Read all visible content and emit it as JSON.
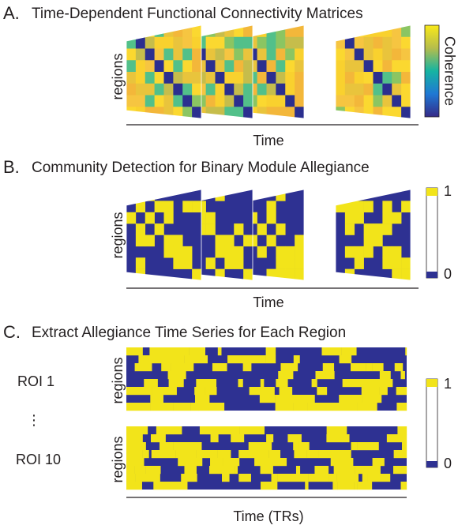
{
  "panel_a": {
    "label": "A.",
    "title": "Time-Dependent Functional Connectivity Matrices",
    "y_label": "regions",
    "x_label": "Time",
    "colorbar_label": "Coherence"
  },
  "panel_b": {
    "label": "B.",
    "title": "Community Detection for Binary Module Allegiance",
    "y_label": "regions",
    "x_label": "Time",
    "colorbar_max": "1",
    "colorbar_min": "0"
  },
  "panel_c": {
    "label": "C.",
    "title": "Extract Allegiance Time Series for Each Region",
    "rois": [
      "ROI 1",
      "⋮",
      "ROI 10"
    ],
    "y_labels": [
      "regions",
      "regions"
    ],
    "x_label": "Time (TRs)",
    "colorbar_max": "1",
    "colorbar_min": "0"
  }
}
